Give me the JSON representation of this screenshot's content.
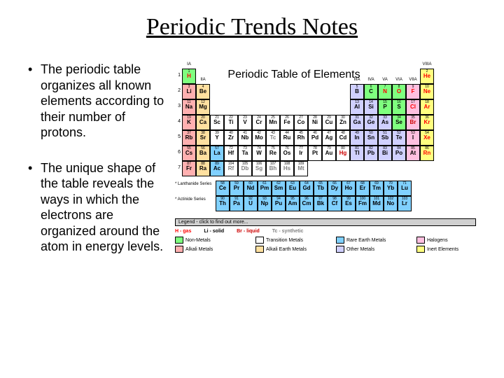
{
  "title": "Periodic Trends Notes",
  "bullets": [
    "The periodic table organizes all known elements according to their number of protons.",
    "The unique shape of the table reveals the ways in which the electrons are organized around the atom in energy levels."
  ],
  "ptable": {
    "title": "Periodic Table of Elements",
    "colors": {
      "nonmetal": "#7fff7f",
      "transition": "#ffffff",
      "rare_earth": "#80d0ff",
      "halogen": "#ffc0e0",
      "alkali": "#ffb0b0",
      "alkaline_earth": "#ffe0a0",
      "other_metal": "#d0d0ff",
      "inert": "#ffff80"
    },
    "state_colors": {
      "gas": "#ff0000",
      "solid": "#000000",
      "liquid": "#cc0000",
      "synthetic": "#808080"
    },
    "group_labels": [
      "IA",
      "IIA",
      "",
      "",
      "",
      "",
      "",
      "",
      "",
      "",
      "",
      "",
      "IIIA",
      "IVA",
      "VA",
      "VIA",
      "VIIA",
      "VIIIA"
    ],
    "periods": [
      1,
      2,
      3,
      4,
      5,
      6,
      7
    ],
    "elements": [
      {
        "n": 1,
        "s": "H",
        "r": 1,
        "c": 1,
        "g": "nonmetal",
        "st": "gas"
      },
      {
        "n": 2,
        "s": "He",
        "r": 1,
        "c": 18,
        "g": "inert",
        "st": "gas"
      },
      {
        "n": 3,
        "s": "Li",
        "r": 2,
        "c": 1,
        "g": "alkali"
      },
      {
        "n": 4,
        "s": "Be",
        "r": 2,
        "c": 2,
        "g": "alkaline_earth"
      },
      {
        "n": 5,
        "s": "B",
        "r": 2,
        "c": 13,
        "g": "other_metal"
      },
      {
        "n": 6,
        "s": "C",
        "r": 2,
        "c": 14,
        "g": "nonmetal"
      },
      {
        "n": 7,
        "s": "N",
        "r": 2,
        "c": 15,
        "g": "nonmetal",
        "st": "gas"
      },
      {
        "n": 8,
        "s": "O",
        "r": 2,
        "c": 16,
        "g": "nonmetal",
        "st": "gas"
      },
      {
        "n": 9,
        "s": "F",
        "r": 2,
        "c": 17,
        "g": "halogen",
        "st": "gas"
      },
      {
        "n": 10,
        "s": "Ne",
        "r": 2,
        "c": 18,
        "g": "inert",
        "st": "gas"
      },
      {
        "n": 11,
        "s": "Na",
        "r": 3,
        "c": 1,
        "g": "alkali"
      },
      {
        "n": 12,
        "s": "Mg",
        "r": 3,
        "c": 2,
        "g": "alkaline_earth"
      },
      {
        "n": 13,
        "s": "Al",
        "r": 3,
        "c": 13,
        "g": "other_metal"
      },
      {
        "n": 14,
        "s": "Si",
        "r": 3,
        "c": 14,
        "g": "other_metal"
      },
      {
        "n": 15,
        "s": "P",
        "r": 3,
        "c": 15,
        "g": "nonmetal"
      },
      {
        "n": 16,
        "s": "S",
        "r": 3,
        "c": 16,
        "g": "nonmetal"
      },
      {
        "n": 17,
        "s": "Cl",
        "r": 3,
        "c": 17,
        "g": "halogen",
        "st": "gas"
      },
      {
        "n": 18,
        "s": "Ar",
        "r": 3,
        "c": 18,
        "g": "inert",
        "st": "gas"
      },
      {
        "n": 19,
        "s": "K",
        "r": 4,
        "c": 1,
        "g": "alkali"
      },
      {
        "n": 20,
        "s": "Ca",
        "r": 4,
        "c": 2,
        "g": "alkaline_earth"
      },
      {
        "n": 21,
        "s": "Sc",
        "r": 4,
        "c": 3,
        "g": "transition"
      },
      {
        "n": 22,
        "s": "Ti",
        "r": 4,
        "c": 4,
        "g": "transition"
      },
      {
        "n": 23,
        "s": "V",
        "r": 4,
        "c": 5,
        "g": "transition"
      },
      {
        "n": 24,
        "s": "Cr",
        "r": 4,
        "c": 6,
        "g": "transition"
      },
      {
        "n": 25,
        "s": "Mn",
        "r": 4,
        "c": 7,
        "g": "transition"
      },
      {
        "n": 26,
        "s": "Fe",
        "r": 4,
        "c": 8,
        "g": "transition"
      },
      {
        "n": 27,
        "s": "Co",
        "r": 4,
        "c": 9,
        "g": "transition"
      },
      {
        "n": 28,
        "s": "Ni",
        "r": 4,
        "c": 10,
        "g": "transition"
      },
      {
        "n": 29,
        "s": "Cu",
        "r": 4,
        "c": 11,
        "g": "transition"
      },
      {
        "n": 30,
        "s": "Zn",
        "r": 4,
        "c": 12,
        "g": "transition"
      },
      {
        "n": 31,
        "s": "Ga",
        "r": 4,
        "c": 13,
        "g": "other_metal"
      },
      {
        "n": 32,
        "s": "Ge",
        "r": 4,
        "c": 14,
        "g": "other_metal"
      },
      {
        "n": 33,
        "s": "As",
        "r": 4,
        "c": 15,
        "g": "other_metal"
      },
      {
        "n": 34,
        "s": "Se",
        "r": 4,
        "c": 16,
        "g": "nonmetal"
      },
      {
        "n": 35,
        "s": "Br",
        "r": 4,
        "c": 17,
        "g": "halogen",
        "st": "liquid"
      },
      {
        "n": 36,
        "s": "Kr",
        "r": 4,
        "c": 18,
        "g": "inert",
        "st": "gas"
      },
      {
        "n": 37,
        "s": "Rb",
        "r": 5,
        "c": 1,
        "g": "alkali"
      },
      {
        "n": 38,
        "s": "Sr",
        "r": 5,
        "c": 2,
        "g": "alkaline_earth"
      },
      {
        "n": 39,
        "s": "Y",
        "r": 5,
        "c": 3,
        "g": "transition"
      },
      {
        "n": 40,
        "s": "Zr",
        "r": 5,
        "c": 4,
        "g": "transition"
      },
      {
        "n": 41,
        "s": "Nb",
        "r": 5,
        "c": 5,
        "g": "transition"
      },
      {
        "n": 42,
        "s": "Mo",
        "r": 5,
        "c": 6,
        "g": "transition"
      },
      {
        "n": 43,
        "s": "Tc",
        "r": 5,
        "c": 7,
        "g": "transition",
        "st": "synthetic"
      },
      {
        "n": 44,
        "s": "Ru",
        "r": 5,
        "c": 8,
        "g": "transition"
      },
      {
        "n": 45,
        "s": "Rh",
        "r": 5,
        "c": 9,
        "g": "transition"
      },
      {
        "n": 46,
        "s": "Pd",
        "r": 5,
        "c": 10,
        "g": "transition"
      },
      {
        "n": 47,
        "s": "Ag",
        "r": 5,
        "c": 11,
        "g": "transition"
      },
      {
        "n": 48,
        "s": "Cd",
        "r": 5,
        "c": 12,
        "g": "transition"
      },
      {
        "n": 49,
        "s": "In",
        "r": 5,
        "c": 13,
        "g": "other_metal"
      },
      {
        "n": 50,
        "s": "Sn",
        "r": 5,
        "c": 14,
        "g": "other_metal"
      },
      {
        "n": 51,
        "s": "Sb",
        "r": 5,
        "c": 15,
        "g": "other_metal"
      },
      {
        "n": 52,
        "s": "Te",
        "r": 5,
        "c": 16,
        "g": "other_metal"
      },
      {
        "n": 53,
        "s": "I",
        "r": 5,
        "c": 17,
        "g": "halogen"
      },
      {
        "n": 54,
        "s": "Xe",
        "r": 5,
        "c": 18,
        "g": "inert",
        "st": "gas"
      },
      {
        "n": 55,
        "s": "Cs",
        "r": 6,
        "c": 1,
        "g": "alkali"
      },
      {
        "n": 56,
        "s": "Ba",
        "r": 6,
        "c": 2,
        "g": "alkaline_earth"
      },
      {
        "n": 72,
        "s": "Hf",
        "r": 6,
        "c": 4,
        "g": "transition"
      },
      {
        "n": 73,
        "s": "Ta",
        "r": 6,
        "c": 5,
        "g": "transition"
      },
      {
        "n": 74,
        "s": "W",
        "r": 6,
        "c": 6,
        "g": "transition"
      },
      {
        "n": 75,
        "s": "Re",
        "r": 6,
        "c": 7,
        "g": "transition"
      },
      {
        "n": 76,
        "s": "Os",
        "r": 6,
        "c": 8,
        "g": "transition"
      },
      {
        "n": 77,
        "s": "Ir",
        "r": 6,
        "c": 9,
        "g": "transition"
      },
      {
        "n": 78,
        "s": "Pt",
        "r": 6,
        "c": 10,
        "g": "transition"
      },
      {
        "n": 79,
        "s": "Au",
        "r": 6,
        "c": 11,
        "g": "transition"
      },
      {
        "n": 80,
        "s": "Hg",
        "r": 6,
        "c": 12,
        "g": "transition",
        "st": "liquid"
      },
      {
        "n": 81,
        "s": "Tl",
        "r": 6,
        "c": 13,
        "g": "other_metal"
      },
      {
        "n": 82,
        "s": "Pb",
        "r": 6,
        "c": 14,
        "g": "other_metal"
      },
      {
        "n": 83,
        "s": "Bi",
        "r": 6,
        "c": 15,
        "g": "other_metal"
      },
      {
        "n": 84,
        "s": "Po",
        "r": 6,
        "c": 16,
        "g": "other_metal"
      },
      {
        "n": 85,
        "s": "At",
        "r": 6,
        "c": 17,
        "g": "halogen"
      },
      {
        "n": 86,
        "s": "Rn",
        "r": 6,
        "c": 18,
        "g": "inert",
        "st": "gas"
      },
      {
        "n": 87,
        "s": "Fr",
        "r": 7,
        "c": 1,
        "g": "alkali"
      },
      {
        "n": 88,
        "s": "Ra",
        "r": 7,
        "c": 2,
        "g": "alkaline_earth"
      },
      {
        "n": 104,
        "s": "Rf",
        "r": 7,
        "c": 4,
        "g": "transition",
        "st": "synthetic"
      },
      {
        "n": 105,
        "s": "Db",
        "r": 7,
        "c": 5,
        "g": "transition",
        "st": "synthetic"
      },
      {
        "n": 106,
        "s": "Sg",
        "r": 7,
        "c": 6,
        "g": "transition",
        "st": "synthetic"
      },
      {
        "n": 107,
        "s": "Bh",
        "r": 7,
        "c": 7,
        "g": "transition",
        "st": "synthetic"
      },
      {
        "n": 108,
        "s": "Hs",
        "r": 7,
        "c": 8,
        "g": "transition",
        "st": "synthetic"
      },
      {
        "n": 109,
        "s": "Mt",
        "r": 7,
        "c": 9,
        "g": "transition",
        "st": "synthetic"
      }
    ],
    "lanthanides": [
      {
        "n": 58,
        "s": "Ce"
      },
      {
        "n": 59,
        "s": "Pr"
      },
      {
        "n": 60,
        "s": "Nd"
      },
      {
        "n": 61,
        "s": "Pm"
      },
      {
        "n": 62,
        "s": "Sm"
      },
      {
        "n": 63,
        "s": "Eu"
      },
      {
        "n": 64,
        "s": "Gd"
      },
      {
        "n": 65,
        "s": "Tb"
      },
      {
        "n": 66,
        "s": "Dy"
      },
      {
        "n": 67,
        "s": "Ho"
      },
      {
        "n": 68,
        "s": "Er"
      },
      {
        "n": 69,
        "s": "Tm"
      },
      {
        "n": 70,
        "s": "Yb"
      },
      {
        "n": 71,
        "s": "Lu"
      }
    ],
    "actinides": [
      {
        "n": 90,
        "s": "Th"
      },
      {
        "n": 91,
        "s": "Pa"
      },
      {
        "n": 92,
        "s": "U"
      },
      {
        "n": 93,
        "s": "Np"
      },
      {
        "n": 94,
        "s": "Pu"
      },
      {
        "n": 95,
        "s": "Am"
      },
      {
        "n": 96,
        "s": "Cm"
      },
      {
        "n": 97,
        "s": "Bk"
      },
      {
        "n": 98,
        "s": "Cf"
      },
      {
        "n": 99,
        "s": "Es"
      },
      {
        "n": 100,
        "s": "Fm"
      },
      {
        "n": 101,
        "s": "Md"
      },
      {
        "n": 102,
        "s": "No"
      },
      {
        "n": 103,
        "s": "Lr"
      }
    ],
    "lanth_label": "* Lanthanide\nSeries",
    "act_label": "* Actinide\nSeries",
    "legend_title": "Legend - click to find out more...",
    "states": [
      {
        "label": "H - gas",
        "color": "#ff0000"
      },
      {
        "label": "Li - solid",
        "color": "#000000"
      },
      {
        "label": "Br - liquid",
        "color": "#cc0000"
      },
      {
        "label": "Tc - synthetic",
        "color": "#808080"
      }
    ],
    "categories": [
      {
        "label": "Non-Metals",
        "key": "nonmetal"
      },
      {
        "label": "Transition Metals",
        "key": "transition"
      },
      {
        "label": "Rare Earth Metals",
        "key": "rare_earth"
      },
      {
        "label": "Halogens",
        "key": "halogen"
      },
      {
        "label": "Alkali Metals",
        "key": "alkali"
      },
      {
        "label": "Alkali Earth Metals",
        "key": "alkaline_earth"
      },
      {
        "label": "Other Metals",
        "key": "other_metal"
      },
      {
        "label": "Inert Elements",
        "key": "inert"
      }
    ]
  }
}
